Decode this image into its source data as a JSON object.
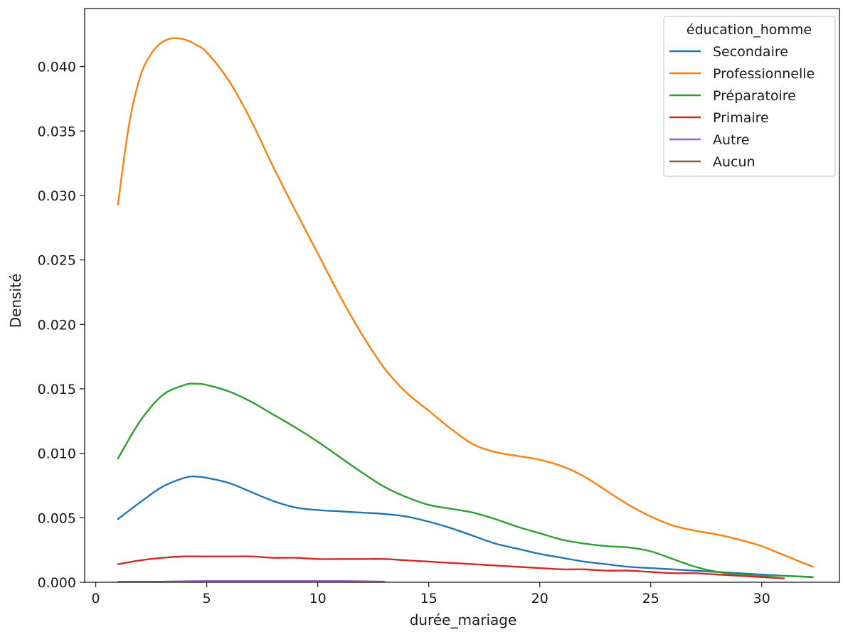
{
  "chart_data": {
    "type": "line",
    "title": "",
    "xlabel": "durée_mariage",
    "ylabel": "Densité",
    "xlim": [
      -0.5,
      33.5
    ],
    "ylim": [
      0,
      0.0445
    ],
    "xticks": [
      0,
      5,
      10,
      15,
      20,
      25,
      30
    ],
    "xtick_labels": [
      "0",
      "5",
      "10",
      "15",
      "20",
      "25",
      "30"
    ],
    "yticks": [
      0,
      0.005,
      0.01,
      0.015,
      0.02,
      0.025,
      0.03,
      0.035,
      0.04
    ],
    "ytick_labels": [
      "0.000",
      "0.005",
      "0.010",
      "0.015",
      "0.020",
      "0.025",
      "0.030",
      "0.035",
      "0.040"
    ],
    "grid": false,
    "legend": {
      "title": "éducation_homme",
      "position": "top-right"
    },
    "series": [
      {
        "name": "Secondaire",
        "color": "#1f77b4",
        "x": [
          1,
          2,
          3,
          4,
          4.5,
          5,
          6,
          7,
          8,
          9,
          10,
          11,
          12,
          13,
          14,
          15,
          16,
          17,
          18,
          19,
          20,
          21,
          22,
          23,
          24,
          25,
          26,
          27,
          28,
          29,
          30,
          31,
          32.3
        ],
        "y": [
          0.0049,
          0.0062,
          0.0074,
          0.0081,
          0.0082,
          0.0081,
          0.0077,
          0.007,
          0.0063,
          0.0058,
          0.0056,
          0.0055,
          0.0054,
          0.0053,
          0.0051,
          0.0047,
          0.0042,
          0.0036,
          0.003,
          0.0026,
          0.0022,
          0.0019,
          0.0016,
          0.0014,
          0.0012,
          0.0011,
          0.001,
          0.0009,
          0.0008,
          0.0007,
          0.0006,
          0.0005,
          0.0004
        ]
      },
      {
        "name": "Professionnelle",
        "color": "#ff7f0e",
        "x": [
          1,
          1.5,
          2,
          2.5,
          3,
          3.5,
          4,
          4.5,
          5,
          6,
          7,
          8,
          9,
          10,
          11,
          12,
          13,
          14,
          15,
          16,
          17,
          18,
          19,
          20,
          21,
          22,
          23,
          24,
          25,
          26,
          27,
          28,
          29,
          30,
          31,
          32.3
        ],
        "y": [
          0.0293,
          0.0355,
          0.0392,
          0.041,
          0.0419,
          0.0422,
          0.0421,
          0.0417,
          0.0411,
          0.0389,
          0.0358,
          0.0322,
          0.0288,
          0.0255,
          0.0222,
          0.0192,
          0.0166,
          0.0147,
          0.0133,
          0.0119,
          0.0107,
          0.0101,
          0.0098,
          0.0095,
          0.009,
          0.0082,
          0.0071,
          0.006,
          0.0051,
          0.0044,
          0.004,
          0.0037,
          0.0033,
          0.0028,
          0.0021,
          0.0012
        ]
      },
      {
        "name": "Préparatoire",
        "color": "#2ca02c",
        "x": [
          1,
          2,
          3,
          4,
          4.5,
          5,
          6,
          7,
          8,
          9,
          10,
          11,
          12,
          13,
          14,
          15,
          16,
          17,
          18,
          19,
          20,
          21,
          22,
          23,
          24,
          25,
          26,
          27,
          28,
          29,
          30,
          31,
          32.3
        ],
        "y": [
          0.0096,
          0.0125,
          0.0145,
          0.0153,
          0.0154,
          0.0153,
          0.0148,
          0.014,
          0.013,
          0.012,
          0.0109,
          0.0097,
          0.0085,
          0.0074,
          0.0066,
          0.006,
          0.0057,
          0.0054,
          0.0049,
          0.0043,
          0.0038,
          0.0033,
          0.003,
          0.0028,
          0.0027,
          0.0024,
          0.0018,
          0.0012,
          0.0008,
          0.0006,
          0.0005,
          0.0005,
          0.0004
        ]
      },
      {
        "name": "Primaire",
        "color": "#d62728",
        "x": [
          1,
          2,
          3,
          4,
          5,
          6,
          7,
          8,
          9,
          10,
          11,
          12,
          13,
          14,
          15,
          16,
          17,
          18,
          19,
          20,
          21,
          22,
          23,
          24,
          25,
          26,
          27,
          28,
          29,
          30,
          31
        ],
        "y": [
          0.0014,
          0.0017,
          0.0019,
          0.002,
          0.002,
          0.002,
          0.002,
          0.0019,
          0.0019,
          0.0018,
          0.0018,
          0.0018,
          0.0018,
          0.0017,
          0.0016,
          0.0015,
          0.0014,
          0.0013,
          0.0012,
          0.0011,
          0.001,
          0.001,
          0.0009,
          0.0009,
          0.0008,
          0.0007,
          0.0007,
          0.0006,
          0.0005,
          0.0004,
          0.0003
        ]
      },
      {
        "name": "Autre",
        "color": "#9467bd",
        "x": [
          3,
          5,
          7,
          9,
          11,
          13
        ],
        "y": [
          5e-05,
          0.0001,
          0.0001,
          0.0001,
          0.0001,
          5e-05
        ]
      },
      {
        "name": "Aucun",
        "color": "#8c564b",
        "x": [
          1,
          2,
          3
        ],
        "y": [
          3e-05,
          4e-05,
          3e-05
        ]
      }
    ]
  }
}
